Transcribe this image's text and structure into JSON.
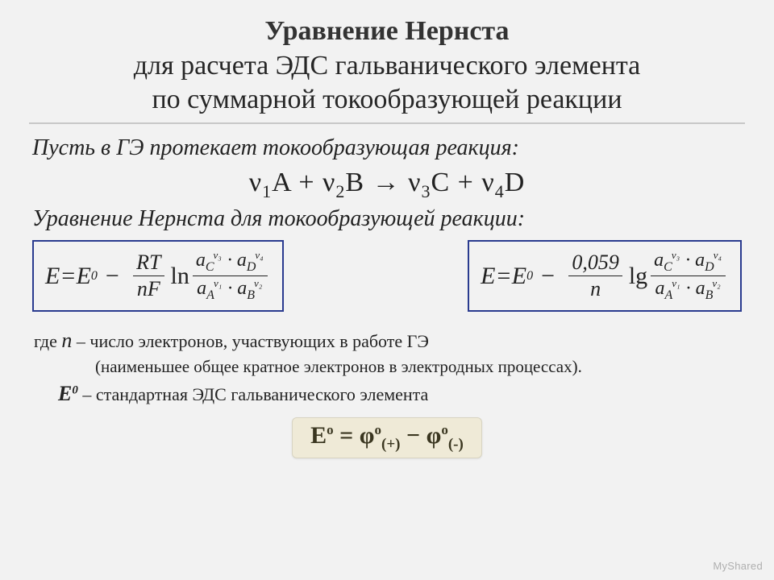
{
  "colors": {
    "background": "#f2f2f2",
    "title_main": "#333333",
    "text": "#222222",
    "eq_border": "#2a3b8f",
    "result_bg": "#efead7",
    "result_border": "#d8d4c2",
    "result_text": "#3a3620",
    "divider": "#c8c8c8"
  },
  "title": {
    "main": "Уравнение Нернста",
    "sub1": "для расчета ЭДС гальванического элемента",
    "sub2": "по суммарной токообразующей реакции"
  },
  "lead": "Пусть в ГЭ протекает  токообразующая реакция:",
  "reaction": {
    "nu": "ν",
    "s1": "1",
    "A": "A",
    "plus": " + ",
    "s2": "2",
    "B": "B",
    "arrow": " → ",
    "s3": "3",
    "C": "C",
    "s4": "4",
    "D": "D"
  },
  "nernst_label": "Уравнение Нернста для токообразующей реакции:",
  "eq_common": {
    "E": "E",
    "eq": " = ",
    "E0": "E",
    "sup0": "0",
    "minus": "−",
    "a": "a",
    "dot": "·",
    "C": "C",
    "D": "D",
    "Av": "A",
    "Bv": "B",
    "v1": "ν₁",
    "v2": "ν₂",
    "v3": "ν₃",
    "v4": "ν₄"
  },
  "eq_left": {
    "frac_num": "RT",
    "frac_den": "nF",
    "log": "ln"
  },
  "eq_right": {
    "frac_num": "0,059",
    "frac_den": "n",
    "log": "lg"
  },
  "where_n": {
    "prefix": "где ",
    "var": "n",
    "dash": " – ",
    "text": "число электронов, участвующих в работе ГЭ"
  },
  "where_n_sub": "(наименьшее общее кратное электронов в электродных процессах).",
  "where_E0": {
    "var": "E",
    "sup": "0",
    "dash": " – ",
    "text": "стандартная ЭДС гальванического элемента"
  },
  "result": {
    "E": "E",
    "o": "о",
    "eq": " = ",
    "phi": "φ",
    "plus_sub": "(+)",
    "minus": " − ",
    "minus_sub": "(-)"
  },
  "watermark": "MyShared"
}
